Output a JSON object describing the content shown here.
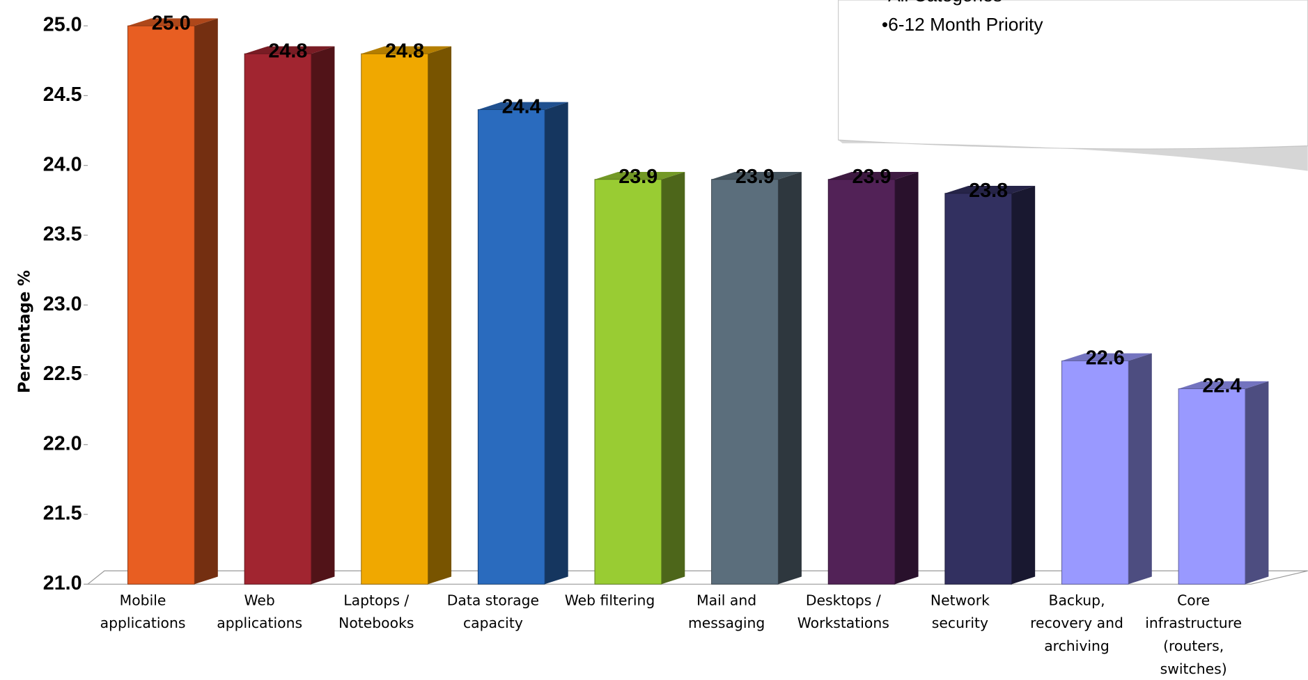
{
  "chart_data": {
    "type": "bar3d",
    "y_label": "Percentage %",
    "legend_notes": [
      "•All Categories",
      "•6-12 Month Priority"
    ],
    "categories": [
      [
        "Mobile",
        "applications"
      ],
      [
        "Web",
        "applications"
      ],
      [
        "Laptops /",
        "Notebooks"
      ],
      [
        "Data storage",
        "capacity"
      ],
      [
        "Web filtering"
      ],
      [
        "Mail and",
        "messaging"
      ],
      [
        "Desktops /",
        "Workstations"
      ],
      [
        "Network",
        "security"
      ],
      [
        "Backup,",
        "recovery and",
        "archiving"
      ],
      [
        "Core",
        "infrastructure",
        "(routers,",
        "switches)"
      ]
    ],
    "values": [
      25.0,
      24.8,
      24.8,
      24.4,
      23.9,
      23.9,
      23.9,
      23.8,
      22.6,
      22.4
    ],
    "value_labels": [
      "25.0",
      "24.8",
      "24.8",
      "24.4",
      "23.9",
      "23.9",
      "23.9",
      "23.8",
      "22.6",
      "22.4"
    ],
    "colors": [
      "#e85e22",
      "#a12530",
      "#f0a800",
      "#2a6bbe",
      "#99cc33",
      "#5b6e7c",
      "#522257",
      "#323060",
      "#9999ff",
      "#9999ff"
    ],
    "ylim": [
      21,
      25
    ],
    "yticks": [
      {
        "value": 21,
        "label": "21.0"
      },
      {
        "value": 21.5,
        "label": "21.5"
      },
      {
        "value": 22,
        "label": "22.0"
      },
      {
        "value": 22.5,
        "label": "22.5"
      },
      {
        "value": 23,
        "label": "23.0"
      },
      {
        "value": 23.5,
        "label": "23.5"
      },
      {
        "value": 24,
        "label": "24.0"
      },
      {
        "value": 24.5,
        "label": "24.5"
      },
      {
        "value": 25,
        "label": "25.0"
      }
    ]
  }
}
